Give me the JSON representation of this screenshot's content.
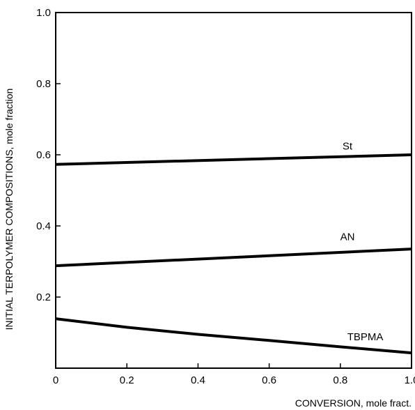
{
  "chart_data": {
    "type": "line",
    "title": "",
    "xlabel": "CONVERSION, mole fract.",
    "ylabel": "INITIAL TERPOLYMER COMPOSITIONS, mole fraction",
    "xlim": [
      0,
      1.0
    ],
    "ylim": [
      0,
      1.0
    ],
    "xticks": [
      0,
      0.2,
      0.4,
      0.6,
      0.8,
      1.0
    ],
    "xtick_labels": [
      "0",
      "0.2",
      "0.4",
      "0.6",
      "0.8",
      "1.0"
    ],
    "yticks": [
      0.2,
      0.4,
      0.6,
      0.8,
      1.0
    ],
    "ytick_labels": [
      "0.2",
      "0.4",
      "0.6",
      "0.8",
      "1.0"
    ],
    "grid": false,
    "legend": "none (series labeled inline)",
    "series": [
      {
        "name": "St",
        "x": [
          0,
          1.0
        ],
        "y": [
          0.573,
          0.6
        ],
        "label_at": [
          0.82,
          0.625
        ]
      },
      {
        "name": "AN",
        "x": [
          0,
          1.0
        ],
        "y": [
          0.288,
          0.335
        ],
        "label_at": [
          0.82,
          0.37
        ]
      },
      {
        "name": "TBPMA",
        "x": [
          0,
          0.2,
          0.4,
          0.6,
          0.8,
          1.0
        ],
        "y": [
          0.139,
          0.115,
          0.095,
          0.078,
          0.06,
          0.043
        ],
        "label_at": [
          0.87,
          0.088
        ]
      }
    ],
    "line_color": "#000000"
  }
}
